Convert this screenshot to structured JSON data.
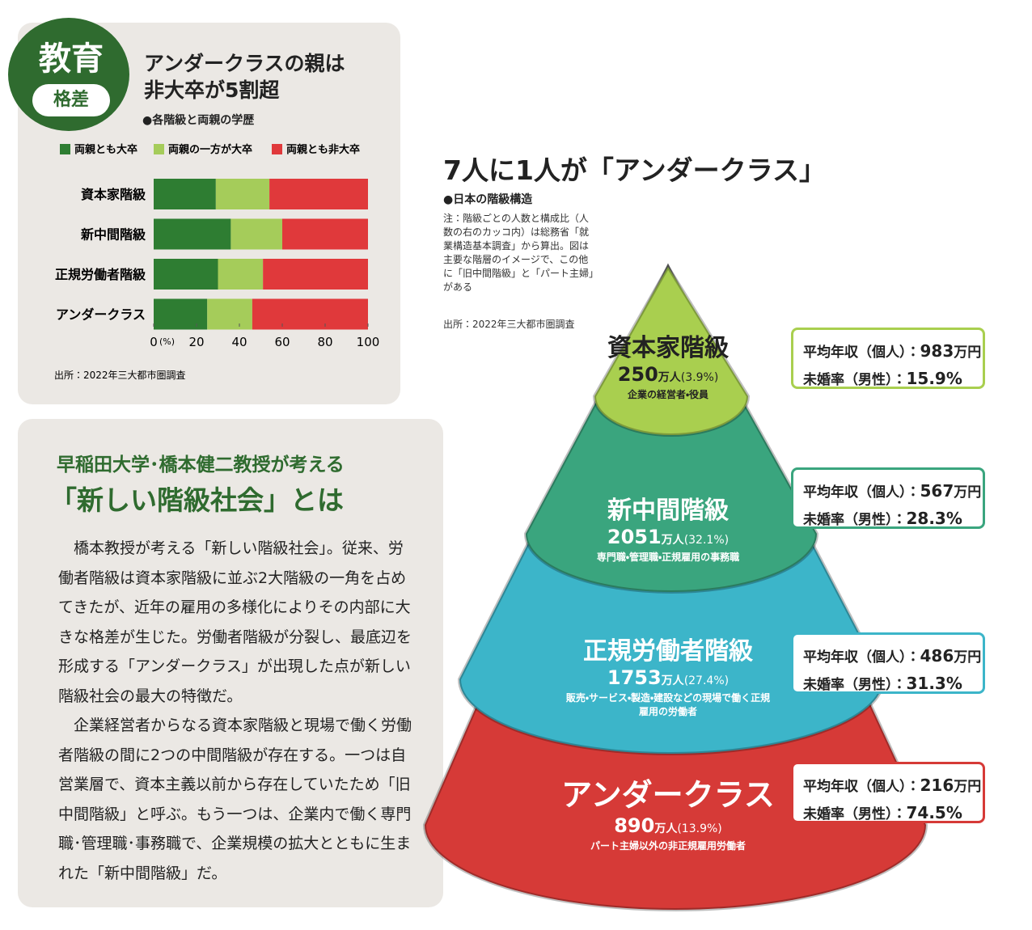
{
  "badge": {
    "main": "教育",
    "sub": "格差"
  },
  "chart_data": {
    "type": "stacked-bar-horizontal",
    "title": "アンダークラスの親は非大卒が5割超",
    "subtitle": "●各階級と両親の学歴",
    "categories": [
      "資本家階級",
      "新中間階級",
      "正規労働者階級",
      "アンダークラス"
    ],
    "series": [
      {
        "name": "両親とも大卒",
        "color": "#2e7d32",
        "values": [
          29,
          36,
          30,
          25
        ]
      },
      {
        "name": "両親の一方が大卒",
        "color": "#a5cc5a",
        "values": [
          25,
          24,
          21,
          21
        ]
      },
      {
        "name": "両親とも非大卒",
        "color": "#e0393b",
        "values": [
          46,
          40,
          49,
          54
        ]
      }
    ],
    "xlim": [
      0,
      100
    ],
    "xticks": [
      0,
      20,
      40,
      60,
      80,
      100
    ],
    "x_unit": "(%)",
    "source": "出所：2022年三大都市圏調査"
  },
  "article": {
    "heading1": "早稲田大学･橋本健二教授が考える",
    "heading2": "「新しい階級社会」とは",
    "paragraphs": [
      "橋本教授が考える「新しい階級社会」。従来、労働者階級は資本家階級に並ぶ2大階級の一角を占めてきたが、近年の雇用の多様化によりその内部に大きな格差が生じた。労働者階級が分裂し、最底辺を形成する「アンダークラス」が出現した点が新しい階級社会の最大の特徴だ。",
      "企業経営者からなる資本家階級と現場で働く労働者階級の間に2つの中間階級が存在する。一つは自営業層で、資本主義以前から存在していたため「旧中間階級」と呼ぶ。もう一つは、企業内で働く専門職･管理職･事務職で、企業規模の拡大とともに生まれた「新中間階級」だ。"
    ]
  },
  "pyramid": {
    "title": "7人に1人が「アンダークラス」",
    "subtitle": "●日本の階級構造",
    "note": "注：階級ごとの人数と構成比（人数の右のカッコ内）は総務省「就業構造基本調査」から算出。図は主要な階層のイメージで、この他に「旧中間階級」と「パート主婦」がある",
    "source": "出所：2022年三大都市圏調査",
    "income_label": "平均年収（個人）：",
    "unmarried_label": "未婚率（男性）：",
    "count_unit": "万人",
    "income_unit": "万円",
    "levels": [
      {
        "name": "資本家階級",
        "count": "250",
        "share": "(3.9%)",
        "description": "企業の経営者・役員",
        "income": "983",
        "unmarried": "15.9%",
        "color": "#a9cf4f"
      },
      {
        "name": "新中間階級",
        "count": "2051",
        "share": "(32.1%)",
        "description": "専門職・管理職・正規雇用の事務職",
        "income": "567",
        "unmarried": "28.3%",
        "color": "#3aa57e"
      },
      {
        "name": "正規労働者階級",
        "count": "1753",
        "share": "(27.4%)",
        "description": "販売・サービス・製造・建設などの現場で働く正規雇用の労働者",
        "income": "486",
        "unmarried": "31.3%",
        "color": "#3cb5c9"
      },
      {
        "name": "アンダークラス",
        "count": "890",
        "share": "(13.9%)",
        "description": "パート主婦以外の非正規雇用労働者",
        "income": "216",
        "unmarried": "74.5%",
        "color": "#d63a37"
      }
    ]
  }
}
